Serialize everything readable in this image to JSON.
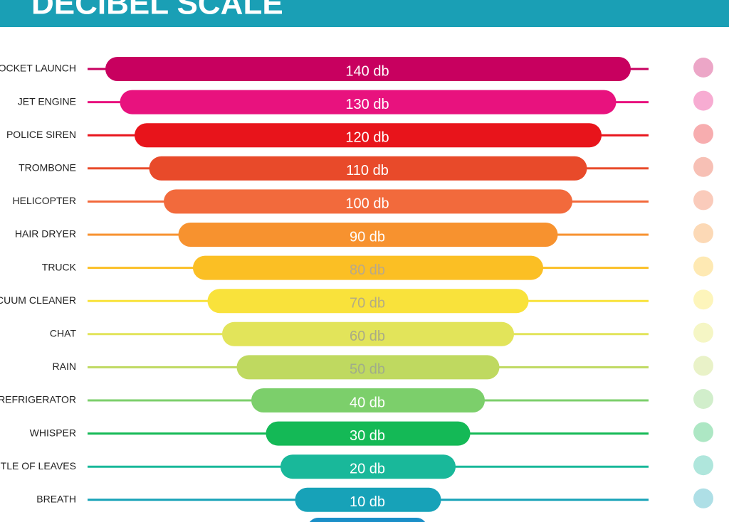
{
  "header": {
    "title": "DECIBEL SCALE"
  },
  "rows": [
    {
      "label": "ROCKET LAUNCH",
      "level": "140 db",
      "color": "#c8005f",
      "text_color": "#ffffff"
    },
    {
      "label": "JET ENGINE",
      "level": "130 db",
      "color": "#e8127e",
      "text_color": "#ffffff"
    },
    {
      "label": "POLICE SIREN",
      "level": "120 db",
      "color": "#e8141b",
      "text_color": "#ffffff"
    },
    {
      "label": "TROMBONE",
      "level": "110 db",
      "color": "#e84a2a",
      "text_color": "#ffffff"
    },
    {
      "label": "HELICOPTER",
      "level": "100 db",
      "color": "#f26a3c",
      "text_color": "#ffffff"
    },
    {
      "label": "HAIR DRYER",
      "level": "90 db",
      "color": "#f7922f",
      "text_color": "#ffffff"
    },
    {
      "label": "TRUCK",
      "level": "80 db",
      "color": "#fbbf24",
      "text_color": "#b8a98a"
    },
    {
      "label": "VACUUM CLEANER",
      "level": "70 db",
      "color": "#f9e23b",
      "text_color": "#b3ac84"
    },
    {
      "label": "CHAT",
      "level": "60 db",
      "color": "#e2e45a",
      "text_color": "#a9ab86"
    },
    {
      "label": "RAIN",
      "level": "50 db",
      "color": "#bfd960",
      "text_color": "#a0ad8a"
    },
    {
      "label": "REFRIGERATOR",
      "level": "40 db",
      "color": "#7ccf6b",
      "text_color": "#ffffff"
    },
    {
      "label": "WHISPER",
      "level": "30 db",
      "color": "#14b956",
      "text_color": "#ffffff"
    },
    {
      "label": "RUSTLE OF LEAVES",
      "level": "20 db",
      "color": "#19b89a",
      "text_color": "#ffffff"
    },
    {
      "label": "BREATH",
      "level": "10 db",
      "color": "#17a2b8",
      "text_color": "#ffffff"
    }
  ]
}
